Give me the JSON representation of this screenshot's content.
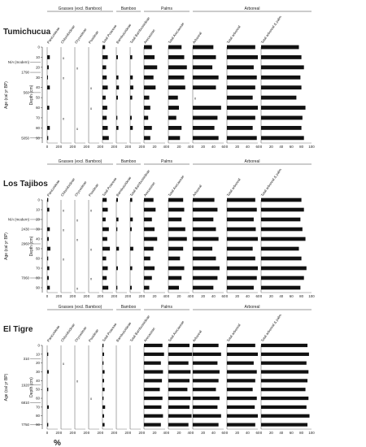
{
  "percent_label": "%",
  "chart_data": [
    {
      "type": "bar",
      "title": "Tumichucua",
      "ylabel": "Depth (cm)",
      "age_label": "Age (cal yr BP)",
      "depth_ticks": [
        0,
        10,
        20,
        30,
        40,
        50,
        60,
        70,
        80,
        90
      ],
      "ylim": [
        0,
        95
      ],
      "ages": [
        {
          "depth": 15,
          "label": "N/A (modern)"
        },
        {
          "depth": 25,
          "label": "1790"
        },
        {
          "depth": 45,
          "label": "560"
        },
        {
          "depth": 90,
          "label": "5050"
        }
      ],
      "groups": [
        {
          "label": "Grasses (excl. Bamboo)",
          "from": 0,
          "to": 4
        },
        {
          "label": "Bamboo",
          "from": 5,
          "to": 6
        },
        {
          "label": "Palms",
          "from": 7,
          "to": 8
        },
        {
          "label": "Arboreal",
          "from": 9,
          "to": 11
        }
      ],
      "series": [
        {
          "name": "Panicoideae",
          "max": 20,
          "values": [
            0,
            5,
            3,
            1,
            5,
            0,
            4,
            0,
            5,
            2
          ]
        },
        {
          "name": "Chloridoideae",
          "max": 20,
          "values": [
            0,
            "x",
            0,
            "x",
            0,
            0,
            0,
            "x",
            0,
            0
          ]
        },
        {
          "name": "Oryzoideae",
          "max": 20,
          "values": [
            0,
            0,
            "x",
            0,
            0,
            0,
            0,
            0,
            "x",
            0
          ]
        },
        {
          "name": "Pooideae",
          "max": 20,
          "values": [
            0,
            0,
            0,
            0,
            "x",
            0,
            "x",
            0,
            0,
            0
          ]
        },
        {
          "name": "Total Poaceae",
          "max": 20,
          "values": [
            5,
            10,
            7,
            8,
            10,
            6,
            9,
            8,
            10,
            12
          ]
        },
        {
          "name": "Bambusoideae",
          "max": 20,
          "values": [
            0,
            3,
            0,
            4,
            5,
            3,
            0,
            2,
            4,
            0
          ]
        },
        {
          "name": "Total Bambusoideae",
          "max": 20,
          "values": [
            0,
            4,
            0,
            5,
            6,
            4,
            0,
            3,
            5,
            0
          ]
        },
        {
          "name": "Arecaceae",
          "max": 40,
          "values": [
            15,
            20,
            25,
            18,
            22,
            10,
            12,
            8,
            15,
            12
          ]
        },
        {
          "name": "Total Arecaceae",
          "max": 40,
          "values": [
            25,
            30,
            35,
            30,
            32,
            18,
            20,
            15,
            25,
            22
          ]
        },
        {
          "name": "Arboreal",
          "max": 60,
          "values": [
            40,
            45,
            38,
            50,
            45,
            "x",
            55,
            48,
            42,
            50
          ]
        },
        {
          "name": "Total arboreal",
          "max": 60,
          "values": [
            55,
            60,
            52,
            58,
            55,
            50,
            60,
            55,
            50,
            58
          ]
        },
        {
          "name": "Total arboreal & palm",
          "max": 100,
          "values": [
            75,
            80,
            85,
            78,
            80,
            70,
            88,
            82,
            80,
            85
          ]
        }
      ]
    },
    {
      "type": "bar",
      "title": "Los Tajibos",
      "ylabel": "Depth (cm)",
      "age_label": "Age (cal yr BP)",
      "depth_ticks": [
        0,
        10,
        20,
        30,
        40,
        50,
        60,
        70,
        80,
        90
      ],
      "ylim": [
        0,
        95
      ],
      "ages": [
        {
          "depth": 20,
          "label": "N/A (modern)"
        },
        {
          "depth": 30,
          "label": "2430"
        },
        {
          "depth": 45,
          "label": "2960"
        },
        {
          "depth": 80,
          "label": "7060"
        }
      ],
      "groups": [
        {
          "label": "Grasses (excl. Bamboo)",
          "from": 0,
          "to": 4
        },
        {
          "label": "Bamboo",
          "from": 5,
          "to": 6
        },
        {
          "label": "Palms",
          "from": 7,
          "to": 8
        },
        {
          "label": "Arboreal",
          "from": 9,
          "to": 11
        }
      ],
      "series": [
        {
          "name": "Panicoideae",
          "max": 20,
          "values": [
            2,
            4,
            0,
            5,
            3,
            6,
            2,
            4,
            3,
            5
          ]
        },
        {
          "name": "Chloridoideae",
          "max": 20,
          "values": [
            0,
            "x",
            0,
            "x",
            0,
            0,
            "x",
            0,
            0,
            0
          ]
        },
        {
          "name": "Oryzoideae",
          "max": 20,
          "values": [
            0,
            0,
            "x",
            0,
            "x",
            0,
            0,
            0,
            0,
            "x"
          ]
        },
        {
          "name": "Pooideae",
          "max": 20,
          "values": [
            0,
            "x",
            0,
            0,
            0,
            "x",
            0,
            0,
            "x",
            0
          ]
        },
        {
          "name": "Total Poaceae",
          "max": 20,
          "values": [
            8,
            10,
            6,
            12,
            9,
            14,
            7,
            10,
            8,
            11
          ]
        },
        {
          "name": "Bambusoideae",
          "max": 20,
          "values": [
            3,
            0,
            4,
            2,
            0,
            5,
            0,
            3,
            0,
            2
          ]
        },
        {
          "name": "Total Bambusoideae",
          "max": 20,
          "values": [
            4,
            0,
            5,
            3,
            0,
            6,
            0,
            4,
            0,
            3
          ]
        },
        {
          "name": "Arecaceae",
          "max": 40,
          "values": [
            18,
            22,
            15,
            20,
            25,
            18,
            12,
            20,
            15,
            10
          ]
        },
        {
          "name": "Total Arecaceae",
          "max": 40,
          "values": [
            28,
            30,
            25,
            32,
            35,
            28,
            22,
            30,
            25,
            20
          ]
        },
        {
          "name": "Arboreal",
          "max": 60,
          "values": [
            42,
            48,
            40,
            45,
            50,
            38,
            45,
            52,
            48,
            40
          ]
        },
        {
          "name": "Total arboreal",
          "max": 60,
          "values": [
            55,
            58,
            52,
            56,
            60,
            50,
            55,
            60,
            58,
            52
          ]
        },
        {
          "name": "Total arboreal & palm",
          "max": 100,
          "values": [
            80,
            85,
            78,
            82,
            88,
            75,
            80,
            90,
            85,
            78
          ]
        }
      ]
    },
    {
      "type": "bar",
      "title": "El Tigre",
      "ylabel": "Depth (cm)",
      "age_label": "Age (cal yr BP)",
      "depth_ticks": [
        0,
        10,
        20,
        30,
        40,
        50,
        60,
        70,
        80,
        90
      ],
      "ylim": [
        0,
        95
      ],
      "ages": [
        {
          "depth": 15,
          "label": "310"
        },
        {
          "depth": 45,
          "label": "1920"
        },
        {
          "depth": 65,
          "label": "6810"
        },
        {
          "depth": 90,
          "label": "7750"
        }
      ],
      "groups": [
        {
          "label": "Grasses (excl. Bamboo)",
          "from": 0,
          "to": 4
        },
        {
          "label": "Bamboo",
          "from": 5,
          "to": 6
        },
        {
          "label": "Palms",
          "from": 7,
          "to": 8
        },
        {
          "label": "Arboreal",
          "from": 9,
          "to": 11
        }
      ],
      "series": [
        {
          "name": "Panicoideae",
          "max": 20,
          "values": [
            0,
            2,
            0,
            3,
            0,
            2,
            0,
            3,
            0,
            2
          ]
        },
        {
          "name": "Chloridoideae",
          "max": 20,
          "values": [
            0,
            0,
            "x",
            0,
            0,
            0,
            0,
            0,
            0,
            0
          ]
        },
        {
          "name": "Oryzoideae",
          "max": 20,
          "values": [
            0,
            0,
            0,
            0,
            "x",
            0,
            0,
            0,
            0,
            0
          ]
        },
        {
          "name": "Pooideae",
          "max": 20,
          "values": [
            0,
            0,
            0,
            0,
            0,
            0,
            "x",
            0,
            0,
            0
          ]
        },
        {
          "name": "Total Poaceae",
          "max": 20,
          "values": [
            2,
            3,
            2,
            4,
            3,
            4,
            2,
            5,
            3,
            4
          ]
        },
        {
          "name": "Bambusoideae",
          "max": 20,
          "values": [
            0,
            0,
            0,
            0,
            0,
            0,
            0,
            0,
            0,
            0
          ]
        },
        {
          "name": "Total Bambusoideae",
          "max": 20,
          "values": [
            0,
            0,
            0,
            0,
            0,
            0,
            0,
            0,
            0,
            0
          ]
        },
        {
          "name": "Arecaceae",
          "max": 40,
          "values": [
            35,
            38,
            32,
            36,
            34,
            30,
            35,
            33,
            36,
            32
          ]
        },
        {
          "name": "Total Arecaceae",
          "max": 40,
          "values": [
            40,
            45,
            38,
            42,
            40,
            36,
            42,
            40,
            44,
            38
          ]
        },
        {
          "name": "Arboreal",
          "max": 60,
          "values": [
            50,
            55,
            48,
            52,
            50,
            45,
            52,
            48,
            55,
            50
          ]
        },
        {
          "name": "Total arboreal",
          "max": 60,
          "values": [
            55,
            60,
            52,
            58,
            55,
            50,
            58,
            54,
            60,
            55
          ]
        },
        {
          "name": "Total arboreal & palm",
          "max": 100,
          "values": [
            92,
            95,
            90,
            94,
            92,
            88,
            94,
            90,
            96,
            92
          ]
        }
      ]
    }
  ]
}
